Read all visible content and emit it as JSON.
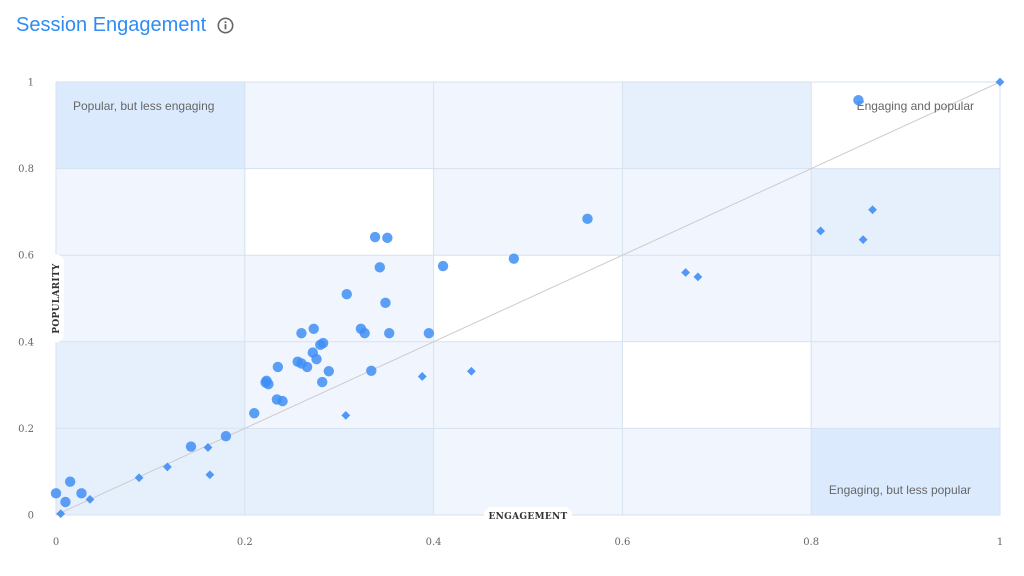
{
  "header": {
    "title": "Session Engagement",
    "info_icon": "info-circle-icon"
  },
  "colors": {
    "title": "#2f8cf2",
    "marker": "#3f8ef5",
    "band_dark": "#dbeafd",
    "band_mid": "#e6f0fd",
    "band_light": "#f1f6fe",
    "diagonal": "#cccccc"
  },
  "chart_data": {
    "type": "scatter",
    "title": "Session Engagement",
    "xlabel": "ENGAGEMENT",
    "ylabel": "POPULARITY",
    "xlim": [
      0,
      1
    ],
    "ylim": [
      0,
      1
    ],
    "xticks": [
      "0",
      "0.2",
      "0.4",
      "0.6",
      "0.8",
      "1"
    ],
    "yticks": [
      "0",
      "0.2",
      "0.4",
      "0.6",
      "0.8",
      "1"
    ],
    "grid": true,
    "diagonal_reference": true,
    "quadrant_labels": {
      "top_left": "Popular, but less engaging",
      "top_right": "Engaging and popular",
      "bottom_right": "Engaging, but less popular"
    },
    "series": [
      {
        "marker": "circle",
        "points": [
          [
            0.0,
            0.05
          ],
          [
            0.01,
            0.03
          ],
          [
            0.015,
            0.077
          ],
          [
            0.027,
            0.05
          ],
          [
            0.143,
            0.158
          ],
          [
            0.18,
            0.182
          ],
          [
            0.21,
            0.235
          ],
          [
            0.222,
            0.306
          ],
          [
            0.223,
            0.31
          ],
          [
            0.225,
            0.302
          ],
          [
            0.234,
            0.267
          ],
          [
            0.235,
            0.342
          ],
          [
            0.24,
            0.263
          ],
          [
            0.256,
            0.354
          ],
          [
            0.26,
            0.35
          ],
          [
            0.26,
            0.42
          ],
          [
            0.266,
            0.342
          ],
          [
            0.272,
            0.375
          ],
          [
            0.273,
            0.43
          ],
          [
            0.276,
            0.36
          ],
          [
            0.28,
            0.393
          ],
          [
            0.282,
            0.307
          ],
          [
            0.283,
            0.397
          ],
          [
            0.289,
            0.332
          ],
          [
            0.308,
            0.51
          ],
          [
            0.323,
            0.43
          ],
          [
            0.327,
            0.42
          ],
          [
            0.334,
            0.333
          ],
          [
            0.338,
            0.642
          ],
          [
            0.343,
            0.572
          ],
          [
            0.349,
            0.49
          ],
          [
            0.351,
            0.64
          ],
          [
            0.353,
            0.42
          ],
          [
            0.395,
            0.42
          ],
          [
            0.41,
            0.575
          ],
          [
            0.485,
            0.592
          ],
          [
            0.563,
            0.684
          ],
          [
            0.85,
            0.958
          ]
        ]
      },
      {
        "marker": "diamond",
        "points": [
          [
            0.005,
            0.003
          ],
          [
            0.036,
            0.036
          ],
          [
            0.088,
            0.086
          ],
          [
            0.118,
            0.111
          ],
          [
            0.161,
            0.156
          ],
          [
            0.163,
            0.093
          ],
          [
            0.307,
            0.23
          ],
          [
            0.388,
            0.32
          ],
          [
            0.44,
            0.332
          ],
          [
            0.667,
            0.56
          ],
          [
            0.68,
            0.55
          ],
          [
            0.81,
            0.656
          ],
          [
            0.855,
            0.636
          ],
          [
            0.865,
            0.705
          ],
          [
            1.0,
            1.0
          ]
        ]
      }
    ]
  }
}
